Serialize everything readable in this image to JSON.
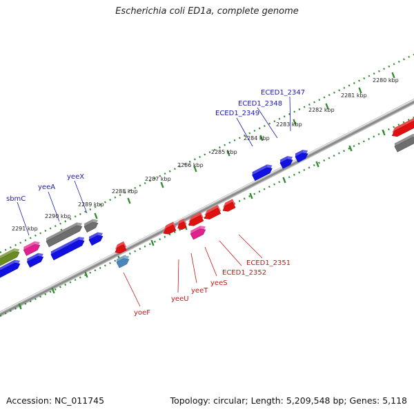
{
  "header": {
    "title": "Escherichia coli ED1a, complete genome"
  },
  "footer": {
    "accession": "Accession: NC_011745",
    "summary": "Topology: circular; Length: 5,209,548 bp; Genes: 5,118"
  },
  "ticks": [
    "2280 kbp",
    "2281 kbp",
    "2282 kbp",
    "2283 kbp",
    "2284 kbp",
    "2285 kbp",
    "2286 kbp",
    "2287 kbp",
    "2288 kbp",
    "2289 kbp",
    "2290 kbp",
    "2291 kbp"
  ],
  "top_labels": [
    "ECED1_2347",
    "ECED1_2348",
    "ECED1_2349",
    "yeeX",
    "yeeA",
    "sbmC"
  ],
  "bottom_labels": [
    "ECED1_2351",
    "ECED1_2352",
    "yeeS",
    "yeeT",
    "yeeU",
    "yoeF"
  ],
  "colors": {
    "forward_gene": "#1010e0",
    "reverse_gene": "#e01010",
    "pseudo_gene": "#6e6e6e",
    "magenta_gene": "#e0208c",
    "olive_gene": "#6a8a22",
    "steel_gene": "#4a86b8",
    "tick_mark": "#2e8b2e",
    "backbone": "#7a7a7a"
  }
}
